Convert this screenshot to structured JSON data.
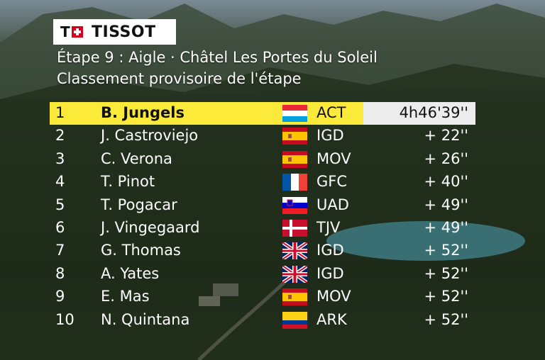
{
  "brand": {
    "logo_text": "TISSOT"
  },
  "header": {
    "stage_line": "Étape 9 : Aigle · Châtel Les Portes du Soleil",
    "subtitle": "Classement provisoire de l'étape"
  },
  "rows": [
    {
      "rank": "1",
      "name": "B. Jungels",
      "flag": "luxembourg-flag",
      "team": "ACT",
      "time": "4h46'39''"
    },
    {
      "rank": "2",
      "name": "J. Castroviejo",
      "flag": "spain-flag",
      "team": "IGD",
      "time": "+ 22''"
    },
    {
      "rank": "3",
      "name": "C. Verona",
      "flag": "spain-flag",
      "team": "MOV",
      "time": "+ 26''"
    },
    {
      "rank": "4",
      "name": "T. Pinot",
      "flag": "france-flag",
      "team": "GFC",
      "time": "+ 40''"
    },
    {
      "rank": "5",
      "name": "T. Pogacar",
      "flag": "slovenia-flag",
      "team": "UAD",
      "time": "+ 49''"
    },
    {
      "rank": "6",
      "name": "J. Vingegaard",
      "flag": "denmark-flag",
      "team": "TJV",
      "time": "+ 49''"
    },
    {
      "rank": "7",
      "name": "G. Thomas",
      "flag": "uk-flag",
      "team": "IGD",
      "time": "+ 52''"
    },
    {
      "rank": "8",
      "name": "A. Yates",
      "flag": "uk-flag",
      "team": "IGD",
      "time": "+ 52''"
    },
    {
      "rank": "9",
      "name": "E. Mas",
      "flag": "spain-flag",
      "team": "MOV",
      "time": "+ 52''"
    },
    {
      "rank": "10",
      "name": "N. Quintana",
      "flag": "colombia-flag",
      "team": "ARK",
      "time": "+ 52''"
    }
  ],
  "colors": {
    "leader_highlight": "#fcea3a",
    "leader_time_bg": "#ececec",
    "text": "#ffffff"
  }
}
